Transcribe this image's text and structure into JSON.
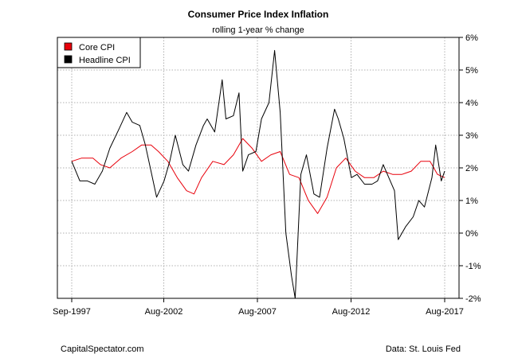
{
  "footer": {
    "left": "CapitalSpectator.com",
    "right": "Data: St. Louis Fed"
  },
  "chart_data": {
    "type": "line",
    "title": "Consumer Price Index Inflation",
    "subtitle": "rolling 1-year % change",
    "xlabel": "",
    "ylabel": "",
    "x_ticks": [
      {
        "label": "Sep-1997",
        "x": 1997.667
      },
      {
        "label": "Aug-2002",
        "x": 2002.583
      },
      {
        "label": "Aug-2007",
        "x": 2007.583
      },
      {
        "label": "Aug-2012",
        "x": 2012.583
      },
      {
        "label": "Aug-2017",
        "x": 2017.583
      }
    ],
    "xlim": [
      1997.667,
      2017.583
    ],
    "ylim": [
      -2,
      6
    ],
    "y_ticks": [
      -2,
      -1,
      0,
      1,
      2,
      3,
      4,
      5,
      6
    ],
    "y_tick_labels": [
      "-2%",
      "-1%",
      "0%",
      "1%",
      "2%",
      "3%",
      "4%",
      "5%",
      "6%"
    ],
    "grid": true,
    "legend_position": "top-left",
    "series": [
      {
        "name": "Core CPI",
        "color": "#e8000b",
        "points": [
          [
            1997.667,
            2.2
          ],
          [
            1998.2,
            2.3
          ],
          [
            1998.8,
            2.3
          ],
          [
            1999.2,
            2.1
          ],
          [
            1999.7,
            2.0
          ],
          [
            2000.3,
            2.3
          ],
          [
            2000.9,
            2.5
          ],
          [
            2001.4,
            2.7
          ],
          [
            2001.9,
            2.7
          ],
          [
            2002.3,
            2.5
          ],
          [
            2002.8,
            2.2
          ],
          [
            2003.3,
            1.7
          ],
          [
            2003.8,
            1.3
          ],
          [
            2004.2,
            1.2
          ],
          [
            2004.6,
            1.7
          ],
          [
            2005.2,
            2.2
          ],
          [
            2005.8,
            2.1
          ],
          [
            2006.3,
            2.4
          ],
          [
            2006.8,
            2.9
          ],
          [
            2007.3,
            2.6
          ],
          [
            2007.8,
            2.2
          ],
          [
            2008.3,
            2.4
          ],
          [
            2008.8,
            2.5
          ],
          [
            2009.3,
            1.8
          ],
          [
            2009.8,
            1.7
          ],
          [
            2010.3,
            1.0
          ],
          [
            2010.8,
            0.6
          ],
          [
            2011.3,
            1.1
          ],
          [
            2011.8,
            2.0
          ],
          [
            2012.3,
            2.3
          ],
          [
            2012.8,
            1.9
          ],
          [
            2013.3,
            1.7
          ],
          [
            2013.8,
            1.7
          ],
          [
            2014.3,
            1.9
          ],
          [
            2014.8,
            1.8
          ],
          [
            2015.3,
            1.8
          ],
          [
            2015.8,
            1.9
          ],
          [
            2016.3,
            2.2
          ],
          [
            2016.8,
            2.2
          ],
          [
            2017.2,
            1.8
          ],
          [
            2017.583,
            1.7
          ]
        ]
      },
      {
        "name": "Headline CPI",
        "color": "#000000",
        "points": [
          [
            1997.667,
            2.2
          ],
          [
            1998.1,
            1.6
          ],
          [
            1998.5,
            1.6
          ],
          [
            1998.9,
            1.5
          ],
          [
            1999.3,
            1.9
          ],
          [
            1999.7,
            2.6
          ],
          [
            2000.2,
            3.2
          ],
          [
            2000.6,
            3.7
          ],
          [
            2000.9,
            3.4
          ],
          [
            2001.3,
            3.3
          ],
          [
            2001.6,
            2.7
          ],
          [
            2001.9,
            1.9
          ],
          [
            2002.2,
            1.1
          ],
          [
            2002.6,
            1.6
          ],
          [
            2002.9,
            2.2
          ],
          [
            2003.2,
            3.0
          ],
          [
            2003.6,
            2.1
          ],
          [
            2003.9,
            1.9
          ],
          [
            2004.3,
            2.7
          ],
          [
            2004.7,
            3.3
          ],
          [
            2004.9,
            3.5
          ],
          [
            2005.3,
            3.1
          ],
          [
            2005.7,
            4.7
          ],
          [
            2005.9,
            3.5
          ],
          [
            2006.3,
            3.6
          ],
          [
            2006.6,
            4.3
          ],
          [
            2006.8,
            1.9
          ],
          [
            2007.1,
            2.4
          ],
          [
            2007.5,
            2.5
          ],
          [
            2007.8,
            3.5
          ],
          [
            2008.2,
            4.0
          ],
          [
            2008.5,
            5.6
          ],
          [
            2008.8,
            3.7
          ],
          [
            2009.1,
            0.0
          ],
          [
            2009.4,
            -1.3
          ],
          [
            2009.6,
            -2.0
          ],
          [
            2009.9,
            1.8
          ],
          [
            2010.2,
            2.4
          ],
          [
            2010.6,
            1.2
          ],
          [
            2010.9,
            1.1
          ],
          [
            2011.3,
            2.6
          ],
          [
            2011.7,
            3.8
          ],
          [
            2011.9,
            3.5
          ],
          [
            2012.2,
            2.9
          ],
          [
            2012.6,
            1.7
          ],
          [
            2012.9,
            1.8
          ],
          [
            2013.3,
            1.5
          ],
          [
            2013.7,
            1.5
          ],
          [
            2014.0,
            1.6
          ],
          [
            2014.3,
            2.1
          ],
          [
            2014.6,
            1.7
          ],
          [
            2014.9,
            1.3
          ],
          [
            2015.1,
            -0.2
          ],
          [
            2015.5,
            0.2
          ],
          [
            2015.9,
            0.5
          ],
          [
            2016.2,
            1.0
          ],
          [
            2016.5,
            0.8
          ],
          [
            2016.9,
            1.7
          ],
          [
            2017.1,
            2.7
          ],
          [
            2017.4,
            1.6
          ],
          [
            2017.583,
            1.9
          ]
        ]
      }
    ]
  }
}
